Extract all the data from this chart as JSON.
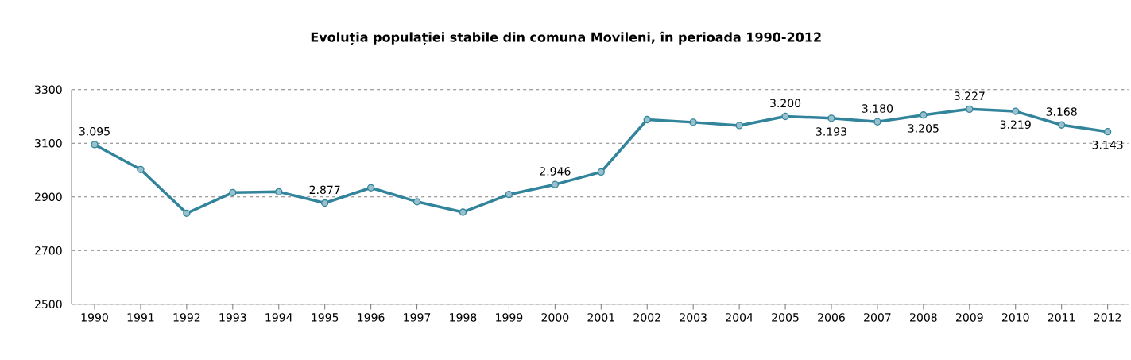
{
  "chart_data": {
    "type": "line",
    "title": "Evoluția populației stabile din comuna  Movileni, în perioada 1990-2012",
    "categories": [
      "1990",
      "1991",
      "1992",
      "1993",
      "1994",
      "1995",
      "1996",
      "1997",
      "1998",
      "1999",
      "2000",
      "2001",
      "2002",
      "2003",
      "2004",
      "2005",
      "2006",
      "2007",
      "2008",
      "2009",
      "2010",
      "2011",
      "2012"
    ],
    "values": [
      3095,
      3002,
      2839,
      2916,
      2919,
      2877,
      2934,
      2882,
      2843,
      2909,
      2946,
      2993,
      3188,
      3178,
      3166,
      3200,
      3193,
      3180,
      3205,
      3227,
      3219,
      3168,
      3143
    ],
    "value_labels": [
      "3.095",
      null,
      null,
      null,
      null,
      "2.877",
      null,
      null,
      null,
      null,
      "2.946",
      null,
      null,
      null,
      null,
      "3.200",
      "3.193",
      "3.180",
      "3.205",
      "3.227",
      "3.219",
      "3.168",
      "3.143"
    ],
    "color": "#31849b",
    "ylim": [
      2500,
      3300
    ],
    "yticks": [
      2500,
      2700,
      2900,
      3100,
      3300
    ],
    "grid": "y",
    "marker": "circle",
    "line_style": "solid"
  }
}
